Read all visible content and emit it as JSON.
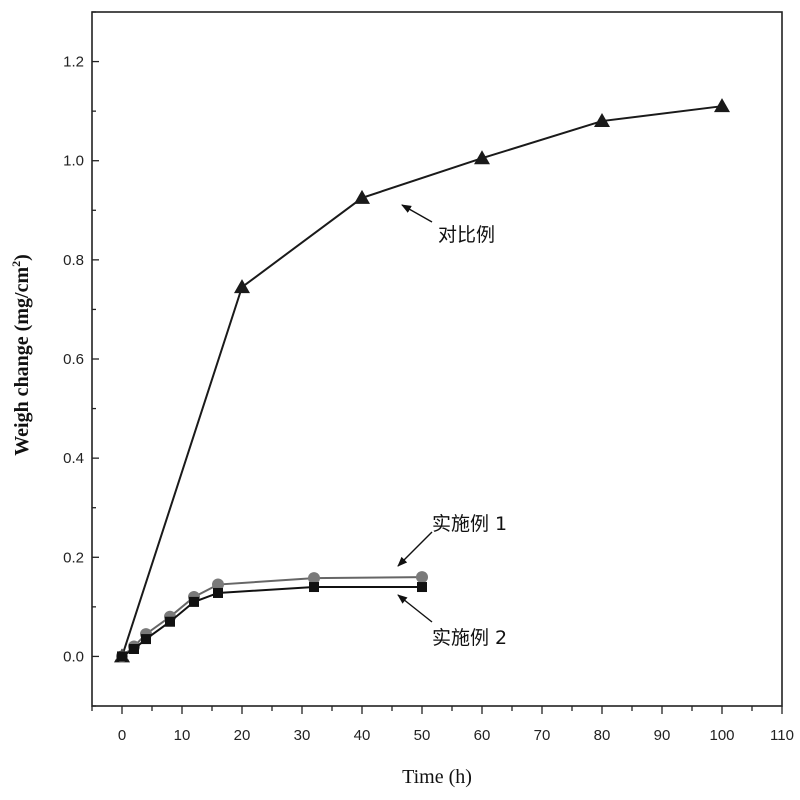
{
  "chart_data": {
    "type": "line",
    "title": "",
    "xlabel": "Time (h)",
    "ylabel_main": "Weigh change (mg/cm",
    "ylabel_sup": "2",
    "ylabel_close": ")",
    "xlim": [
      -5,
      110
    ],
    "ylim": [
      -0.1,
      1.3
    ],
    "x_ticks": [
      0,
      10,
      20,
      30,
      40,
      50,
      60,
      70,
      80,
      90,
      100,
      110
    ],
    "y_ticks": [
      0.0,
      0.2,
      0.4,
      0.6,
      0.8,
      1.0,
      1.2
    ],
    "y_tick_labels": [
      "0.0",
      "0.2",
      "0.4",
      "0.6",
      "0.8",
      "1.0",
      "1.2"
    ],
    "series": [
      {
        "name": "对比例",
        "marker": "triangle",
        "x": [
          0,
          20,
          40,
          60,
          80,
          100
        ],
        "values": [
          0.0,
          0.745,
          0.925,
          1.005,
          1.08,
          1.11
        ]
      },
      {
        "name": "实施例 1",
        "marker": "circle",
        "x": [
          0,
          2,
          4,
          8,
          12,
          16,
          32,
          50
        ],
        "values": [
          0.0,
          0.02,
          0.045,
          0.08,
          0.12,
          0.145,
          0.158,
          0.16
        ]
      },
      {
        "name": "实施例 2",
        "marker": "square",
        "x": [
          0,
          2,
          4,
          8,
          12,
          16,
          32,
          50
        ],
        "values": [
          0.0,
          0.015,
          0.035,
          0.07,
          0.11,
          0.128,
          0.14,
          0.14
        ]
      }
    ],
    "annotations": [
      {
        "text": "对比例",
        "series": "对比例"
      },
      {
        "text": "实施例 1",
        "series": "实施例 1"
      },
      {
        "text": "实施例 2",
        "series": "实施例 2"
      }
    ]
  }
}
